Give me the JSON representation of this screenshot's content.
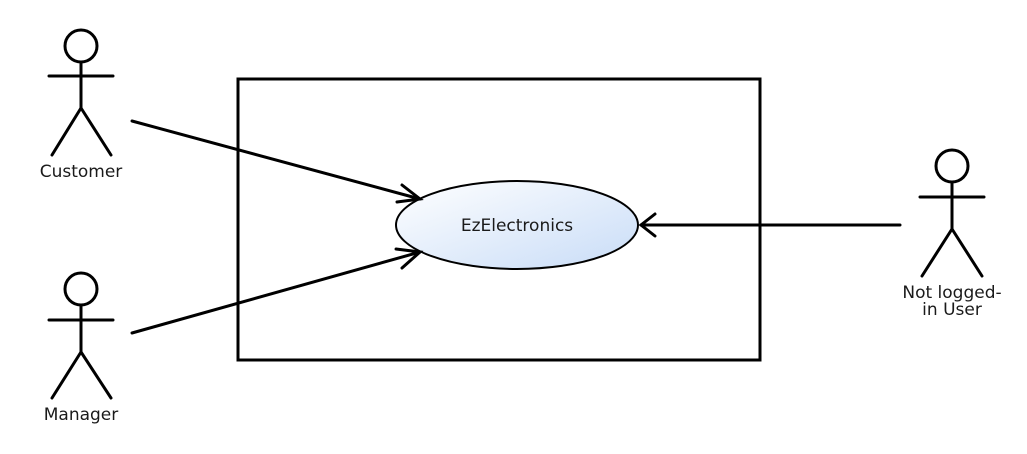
{
  "diagram": {
    "system_boundary": {
      "label": ""
    },
    "use_case": {
      "label": "EzElectronics",
      "fill_start": "#ffffff",
      "fill_end": "#c8dcf7",
      "border": "#000000"
    },
    "actors": {
      "customer": {
        "label": "Customer"
      },
      "manager": {
        "label": "Manager"
      },
      "not_logged_in": {
        "line1": "Not logged-",
        "line2": "in User"
      }
    }
  }
}
